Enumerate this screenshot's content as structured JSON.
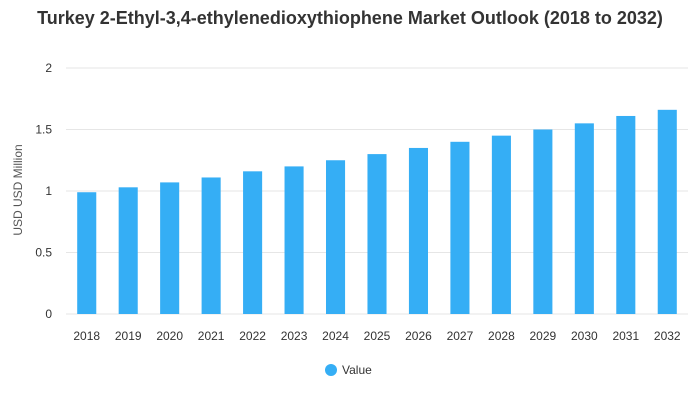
{
  "chart_data": {
    "type": "bar",
    "title": "Turkey 2-Ethyl-3,4-ethylenedioxythiophene Market Outlook (2018 to 2032)",
    "xlabel": "",
    "ylabel": "USD USD Million",
    "categories": [
      "2018",
      "2019",
      "2020",
      "2021",
      "2022",
      "2023",
      "2024",
      "2025",
      "2026",
      "2027",
      "2028",
      "2029",
      "2030",
      "2031",
      "2032"
    ],
    "series": [
      {
        "name": "Value",
        "color": "#35aef5",
        "values": [
          0.99,
          1.03,
          1.07,
          1.11,
          1.16,
          1.2,
          1.25,
          1.3,
          1.35,
          1.4,
          1.45,
          1.5,
          1.55,
          1.61,
          1.66
        ]
      }
    ],
    "ylim": [
      0,
      2
    ],
    "yticks": [
      "0",
      "0.5",
      "1",
      "1.5",
      "2"
    ],
    "grid": true,
    "legend_position": "bottom"
  }
}
